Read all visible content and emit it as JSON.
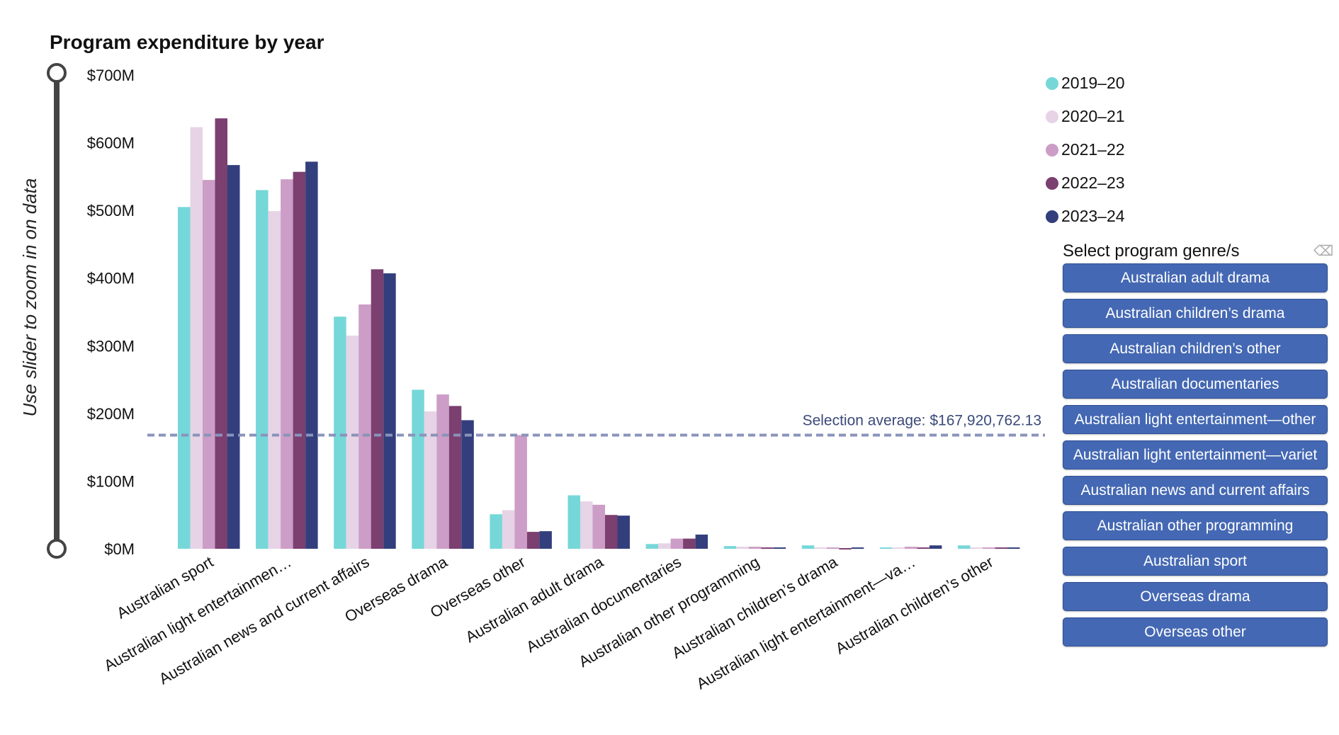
{
  "title": "Program expenditure by year",
  "slider": {
    "label": "Use slider to zoom in on data"
  },
  "average": {
    "label": "Selection average: $167,920,762.13",
    "value": 167920762.13
  },
  "chart_data": {
    "type": "bar",
    "title": "Program expenditure by year",
    "categories": [
      "Australian sport",
      "Australian light entertainmen…",
      "Australian news and current affairs",
      "Overseas drama",
      "Overseas other",
      "Australian adult drama",
      "Australian documentaries",
      "Australian other programming",
      "Australian children’s drama",
      "Australian light entertainment—va…",
      "Australian children’s other"
    ],
    "series": [
      {
        "name": "2019–20",
        "color": "#76d7d8",
        "values": [
          505,
          530,
          343,
          235,
          51,
          79,
          7,
          4,
          5,
          2,
          5
        ]
      },
      {
        "name": "2020–21",
        "color": "#e6d3e6",
        "values": [
          623,
          499,
          315,
          203,
          57,
          70,
          8,
          3,
          2,
          2,
          2
        ]
      },
      {
        "name": "2021–22",
        "color": "#cc9dc6",
        "values": [
          545,
          546,
          361,
          228,
          168,
          65,
          15,
          3,
          2,
          3,
          2
        ]
      },
      {
        "name": "2022–23",
        "color": "#7b3f70",
        "values": [
          636,
          557,
          413,
          211,
          25,
          50,
          15,
          2,
          1,
          2,
          2
        ]
      },
      {
        "name": "2023–24",
        "color": "#333f7c",
        "values": [
          567,
          572,
          407,
          190,
          26,
          49,
          21,
          2,
          2,
          5,
          2
        ]
      }
    ],
    "yunit": "$M",
    "ylim": [
      0,
      700
    ],
    "yticks": [
      "$0M",
      "$100M",
      "$200M",
      "$300M",
      "$400M",
      "$500M",
      "$600M",
      "$700M"
    ],
    "legend": "top-right",
    "grid": false
  },
  "filter": {
    "title": "Select program genre/s",
    "clear_icon": "eraser-icon",
    "buttons": [
      "Australian adult drama",
      "Australian children’s drama",
      "Australian children’s other",
      "Australian documentaries",
      "Australian light entertainment—other",
      "Australian light entertainment—variet",
      "Australian news and current affairs",
      "Australian other programming",
      "Australian sport",
      "Overseas drama",
      "Overseas other"
    ],
    "button_color": "#4468b3"
  }
}
